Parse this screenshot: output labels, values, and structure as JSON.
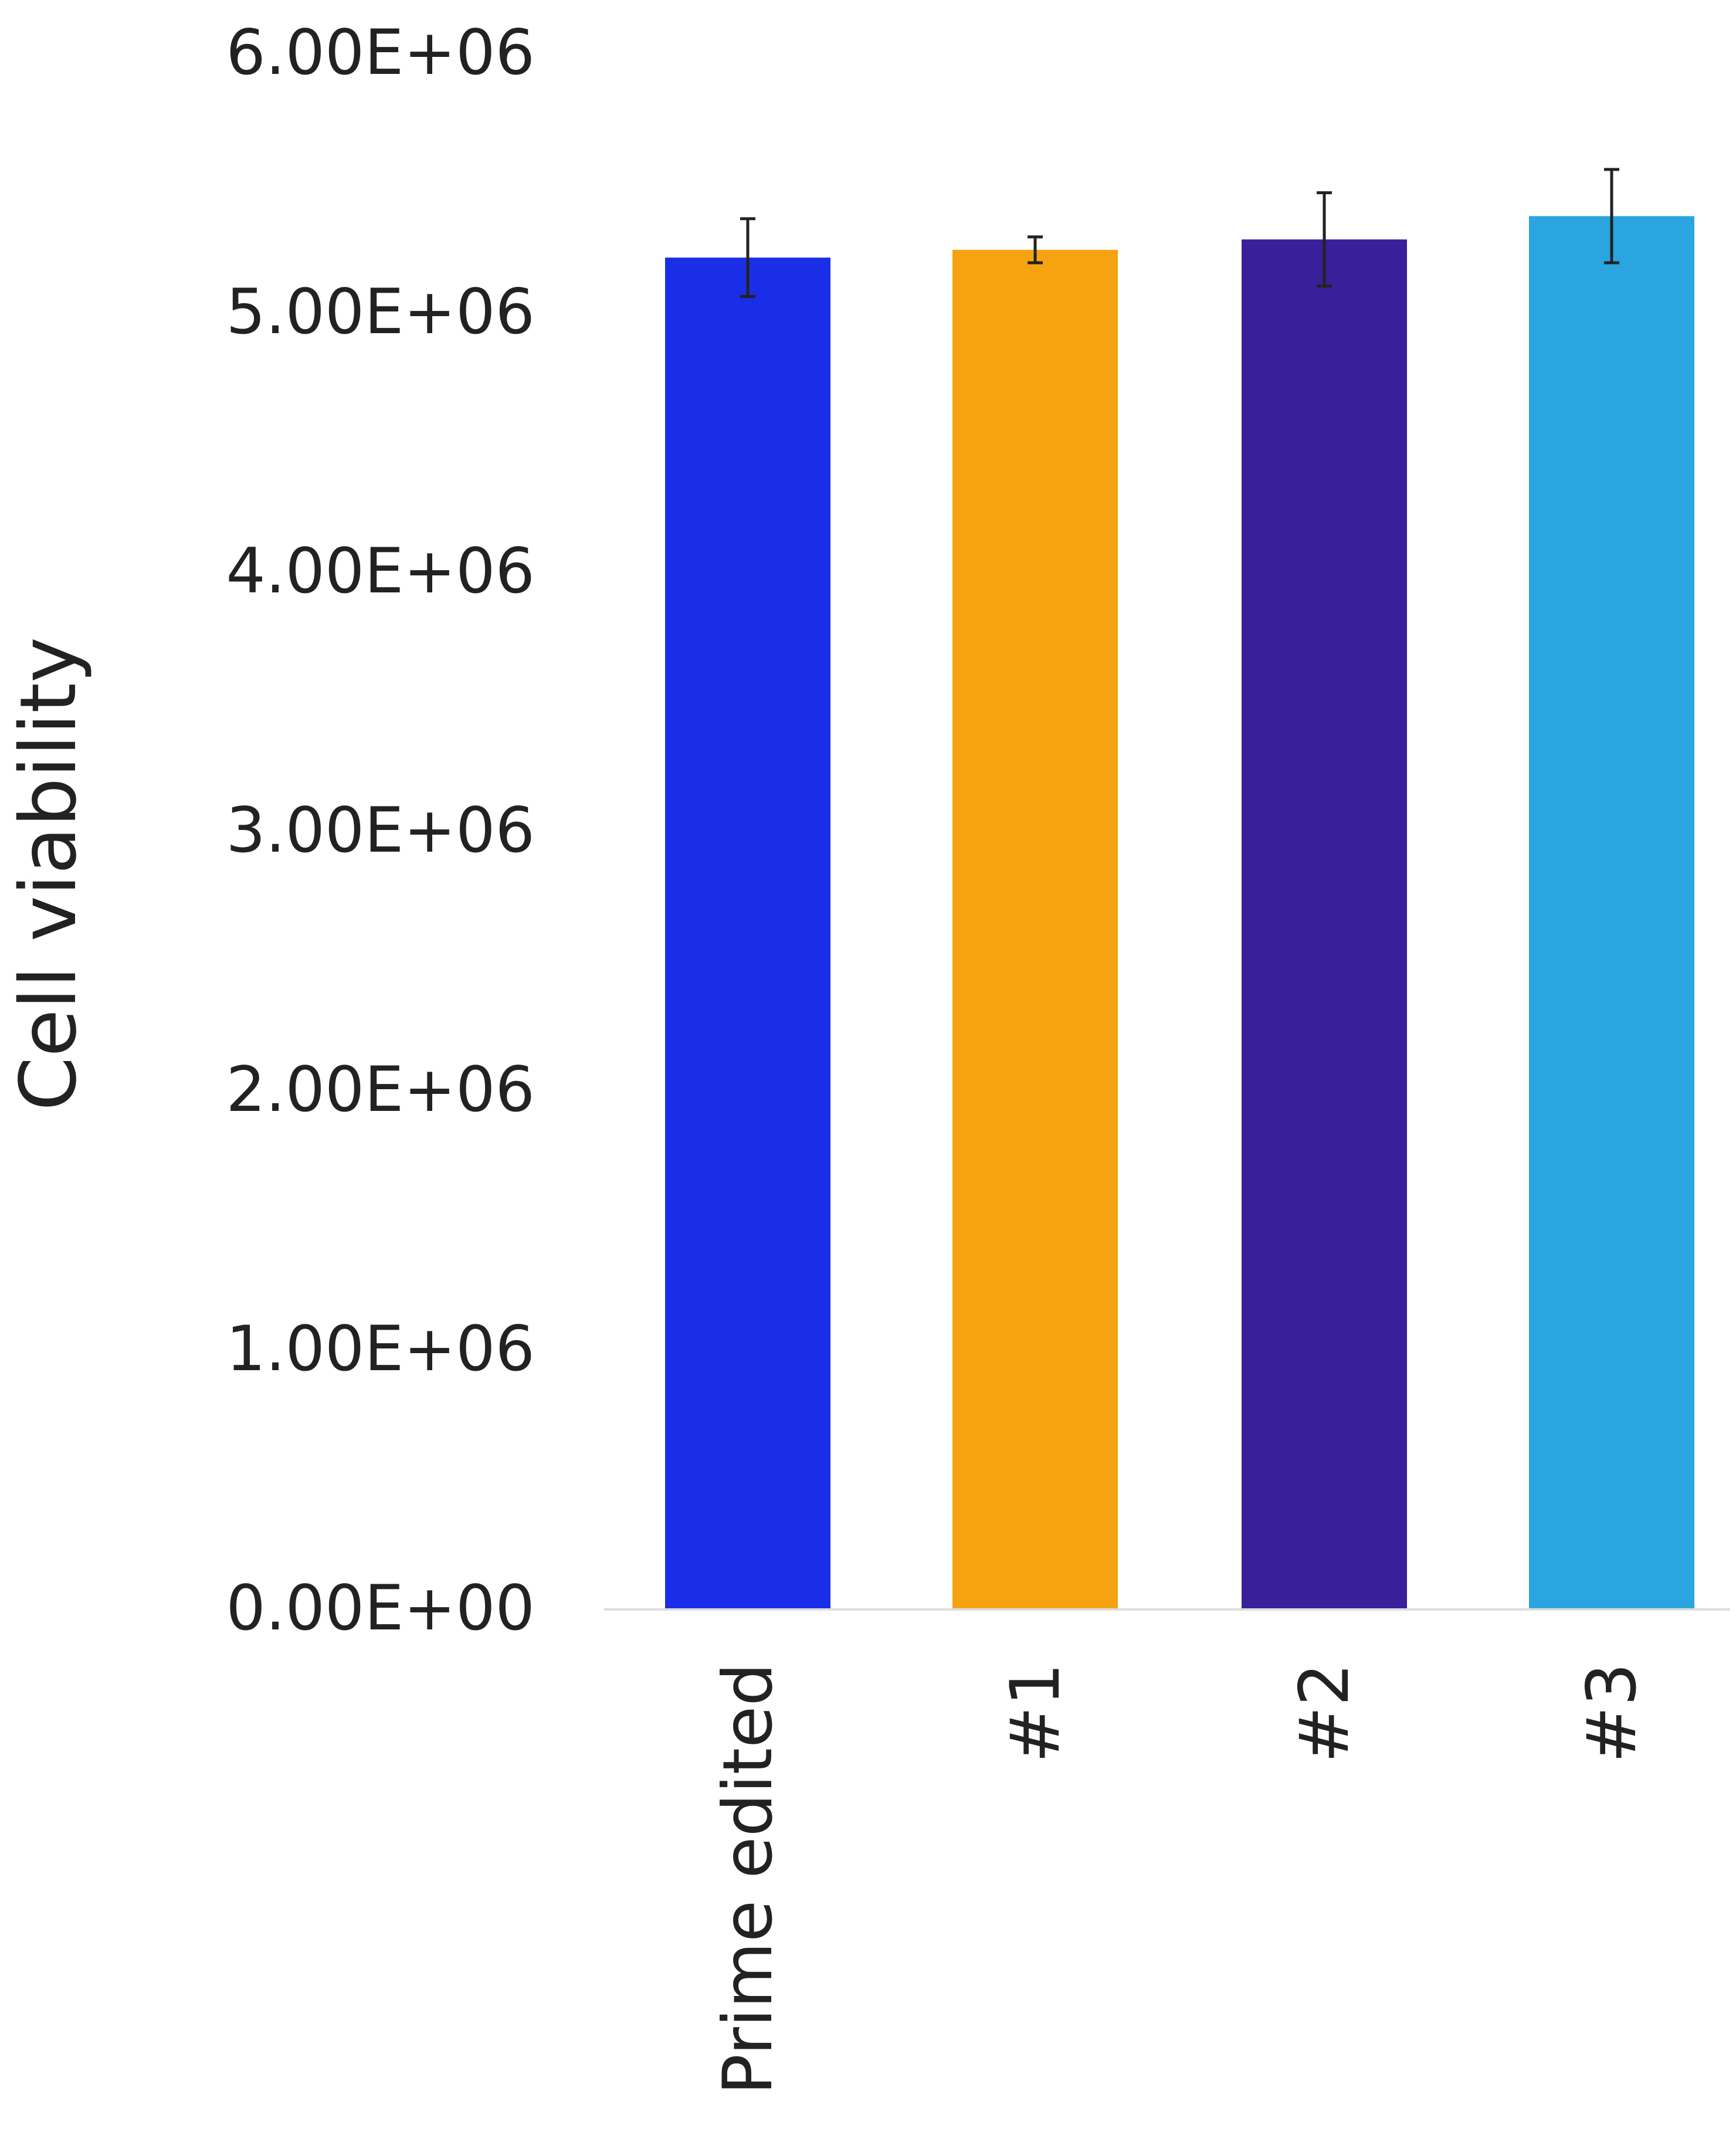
{
  "chart_data": {
    "type": "bar",
    "title": "",
    "xlabel": "",
    "ylabel": "Cell viability",
    "ylim": [
      0,
      6000000
    ],
    "yticks": [
      0,
      1000000,
      2000000,
      3000000,
      4000000,
      5000000,
      6000000
    ],
    "ytick_labels": [
      "0.00E+00",
      "1.00E+06",
      "2.00E+06",
      "3.00E+06",
      "4.00E+06",
      "5.00E+06",
      "6.00E+06"
    ],
    "categories": [
      "Prime edited",
      "#1",
      "#2",
      "#3"
    ],
    "values": [
      5210000,
      5240000,
      5280000,
      5370000
    ],
    "errors": [
      150000,
      50000,
      180000,
      180000
    ],
    "colors": [
      "#1a2ee8",
      "#f5a310",
      "#3a1f9a",
      "#2ba5e0"
    ],
    "grid": false,
    "legend": "none"
  }
}
